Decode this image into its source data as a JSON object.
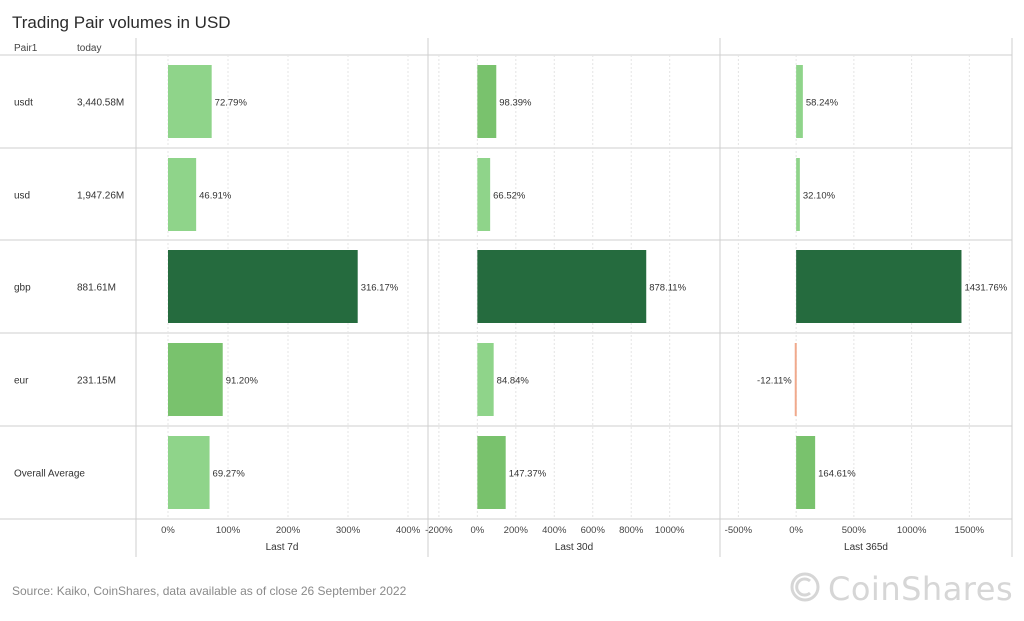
{
  "chart_data": {
    "type": "bar",
    "title": "Trading Pair volumes in USD",
    "row_header_labels": [
      "Pair1",
      "today"
    ],
    "rows": [
      {
        "pair": "usdt",
        "today": "3,440.58M"
      },
      {
        "pair": "usd",
        "today": "1,947.26M"
      },
      {
        "pair": "gbp",
        "today": "881.61M"
      },
      {
        "pair": "eur",
        "today": "231.15M"
      },
      {
        "pair": "Overall Average",
        "today": ""
      }
    ],
    "panels": [
      {
        "xlabel": "Last 7d",
        "xlim": [
          -40,
          420
        ],
        "ticks": [
          0,
          100,
          200,
          300,
          400
        ],
        "tick_labels": [
          "0%",
          "100%",
          "200%",
          "300%",
          "400%"
        ],
        "values": [
          72.79,
          46.91,
          316.17,
          91.2,
          69.27
        ],
        "labels": [
          "72.79%",
          "46.91%",
          "316.17%",
          "91.20%",
          "69.27%"
        ]
      },
      {
        "xlabel": "Last 30d",
        "xlim": [
          -215,
          1220
        ],
        "ticks": [
          -200,
          0,
          200,
          400,
          600,
          800,
          1000
        ],
        "tick_labels": [
          "-200%",
          "0%",
          "200%",
          "400%",
          "600%",
          "800%",
          "1000%"
        ],
        "values": [
          98.39,
          66.52,
          878.11,
          84.84,
          147.37
        ],
        "labels": [
          "98.39%",
          "66.52%",
          "878.11%",
          "84.84%",
          "147.37%"
        ]
      },
      {
        "xlabel": "Last 365d",
        "xlim": [
          -590,
          1800
        ],
        "ticks": [
          -500,
          0,
          500,
          1000,
          1500
        ],
        "tick_labels": [
          "-500%",
          "0%",
          "500%",
          "1000%",
          "1500%"
        ],
        "values": [
          58.24,
          32.1,
          1431.76,
          -12.11,
          164.61
        ],
        "labels": [
          "58.24%",
          "32.10%",
          "1431.76%",
          "-12.11%",
          "164.61%"
        ]
      }
    ],
    "colors": {
      "light": "#8fd48a",
      "mid": "#79c26d",
      "dark": "#256b3e",
      "negative": "#f0a98c"
    },
    "grid": true
  },
  "footer": {
    "source": "Source: Kaiko, CoinShares, data available as of close 26 September 2022",
    "brand": "CoinShares"
  }
}
